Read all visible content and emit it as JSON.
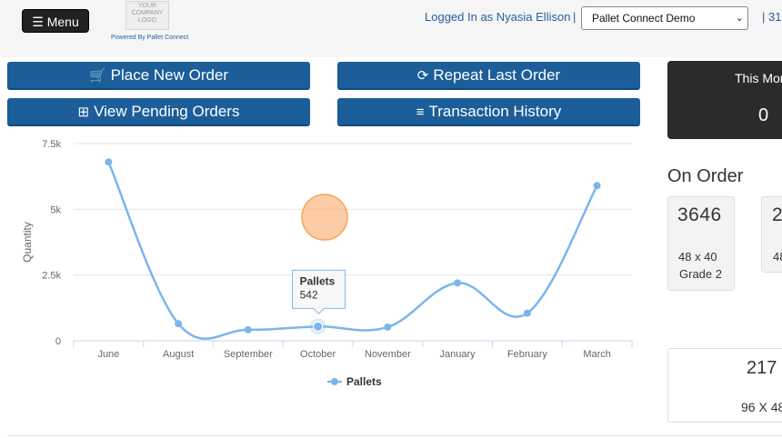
{
  "header": {
    "menu_label": "Menu",
    "logo_lines": [
      "YOUR",
      "COMPANY",
      "LOGO"
    ],
    "powered_by": "Powered By Pallet Connect",
    "login_text": "Logged In as Nyasia Ellison",
    "separator": "|",
    "company_select": "Pallet Connect Demo",
    "date_fragment": "| 31"
  },
  "actions": {
    "place_order": "Place New Order",
    "repeat_order": "Repeat Last Order",
    "pending_orders": "View Pending Orders",
    "transaction_history": "Transaction History"
  },
  "colors": {
    "button": "#1b5e9a",
    "series": "#7cb5ec",
    "dark_panel": "#2b2b2b",
    "highlight": "#f7a35c"
  },
  "chart_data": {
    "type": "line",
    "categories": [
      "June",
      "August",
      "September",
      "October",
      "November",
      "January",
      "February",
      "March"
    ],
    "series": [
      {
        "name": "Pallets",
        "values": [
          6800,
          650,
          420,
          542,
          520,
          2200,
          1050,
          5900
        ]
      }
    ],
    "ylabel": "Quantity",
    "ylim": [
      0,
      7500
    ],
    "yticks": [
      "0",
      "2.5k",
      "5k",
      "7.5k"
    ],
    "ytick_values": [
      0,
      2500,
      5000,
      7500
    ],
    "grid": true,
    "legend": "bottom-center",
    "tooltip": {
      "series": "Pallets",
      "value": "542",
      "category": "October"
    }
  },
  "summary": {
    "this_month_label": "This Mon",
    "this_month_value": "0",
    "on_order_title": "On Order",
    "on_order_cards": [
      {
        "quantity": "3646",
        "size": "48 x 40",
        "grade": "Grade 2"
      },
      {
        "quantity": "2",
        "size": "48",
        "grade": ""
      }
    ],
    "second_card": {
      "quantity": "217",
      "size": "96 X 48"
    }
  }
}
